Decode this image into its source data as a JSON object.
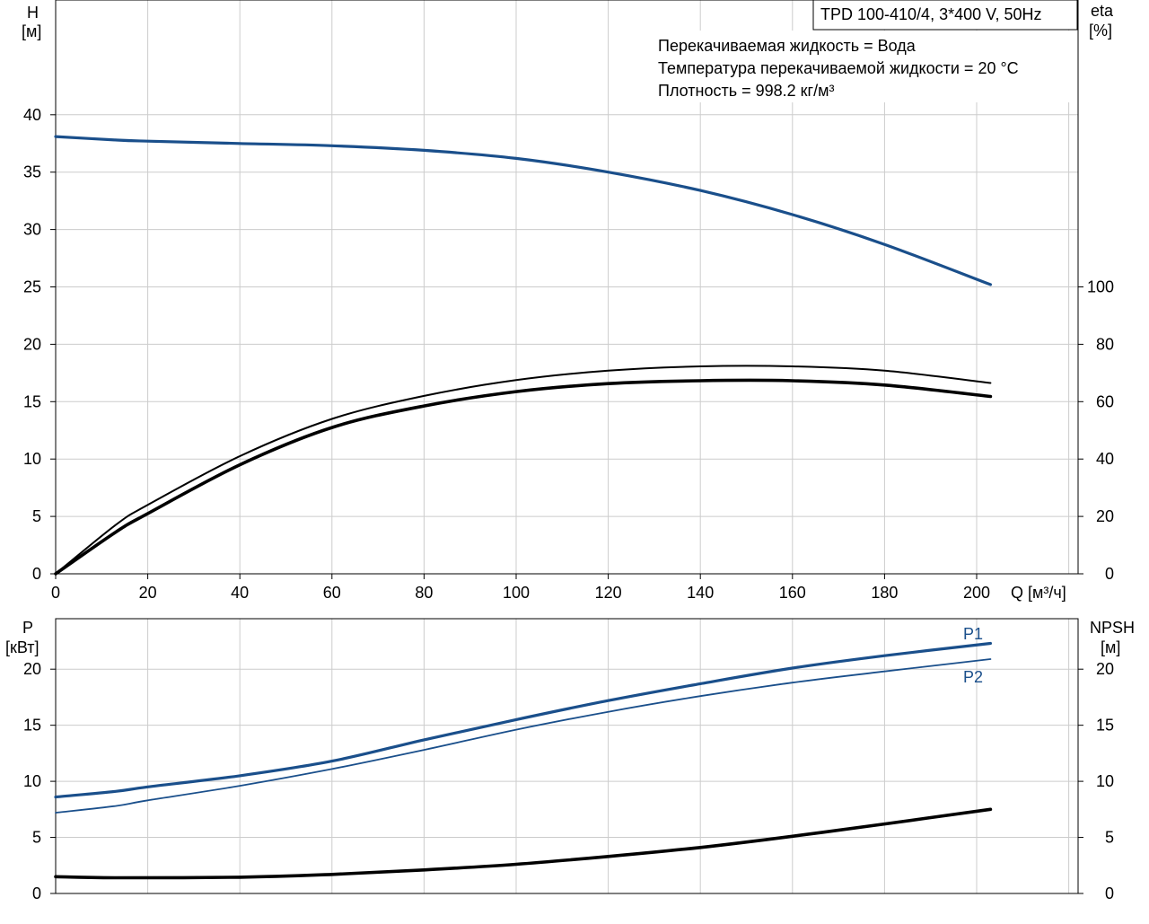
{
  "colors": {
    "blue": "#1a4f8b",
    "black": "#000000",
    "grid": "#cccccc",
    "frame": "#000000"
  },
  "chart_data": [
    {
      "id": "top",
      "type": "line",
      "title": "TPD 100-410/4, 3*400 V, 50Hz",
      "info_lines": [
        "Перекачиваемая жидкость = Вода",
        "Температура перекачиваемой жидкости = 20 °C",
        "Плотность = 998.2 кг/м³"
      ],
      "xlabel": "Q [м³/ч]",
      "x_ticks": [
        0,
        20,
        40,
        60,
        80,
        100,
        120,
        140,
        160,
        180,
        200
      ],
      "xlim": [
        0,
        220
      ],
      "left_axis": {
        "label_top": "H",
        "label_unit": "[м]",
        "ticks": [
          0,
          5,
          10,
          15,
          20,
          25,
          30,
          35,
          40
        ],
        "ylim": [
          0,
          50
        ]
      },
      "right_axis": {
        "label_top": "eta",
        "label_unit": "[%]",
        "ticks": [
          0,
          20,
          40,
          60,
          80,
          100
        ],
        "ylim": [
          0,
          200
        ]
      },
      "grid": true,
      "series": [
        {
          "axis": "left",
          "color": "blue",
          "width": 3.2,
          "x": [
            0,
            13,
            20,
            40,
            60,
            80,
            100,
            120,
            140,
            160,
            180,
            203
          ],
          "y": [
            38.1,
            37.8,
            37.7,
            37.5,
            37.3,
            36.9,
            36.2,
            35.0,
            33.4,
            31.3,
            28.7,
            25.2
          ]
        },
        {
          "axis": "right",
          "color": "black",
          "width": 2.0,
          "x": [
            0,
            13,
            20,
            40,
            60,
            80,
            100,
            120,
            140,
            160,
            180,
            203
          ],
          "y": [
            0,
            17,
            24,
            41,
            54,
            62,
            67.5,
            70.8,
            72.3,
            72.3,
            70.8,
            66.5
          ]
        },
        {
          "axis": "right",
          "color": "black",
          "width": 3.6,
          "x": [
            0,
            13,
            20,
            40,
            60,
            80,
            100,
            120,
            140,
            160,
            180,
            203
          ],
          "y": [
            0,
            14.5,
            21,
            38,
            51,
            58.5,
            63.5,
            66.3,
            67.3,
            67.3,
            65.8,
            61.8
          ]
        }
      ]
    },
    {
      "id": "bottom",
      "type": "line",
      "xlim": [
        0,
        220
      ],
      "x_ticks": [
        0,
        20,
        40,
        60,
        80,
        100,
        120,
        140,
        160,
        180,
        200
      ],
      "left_axis": {
        "label_top": "P",
        "label_unit": "[кВт]",
        "ticks": [
          0,
          5,
          10,
          15,
          20
        ],
        "ylim": [
          0,
          24.5
        ]
      },
      "right_axis": {
        "label_top": "NPSH",
        "label_unit": "[м]",
        "ticks": [
          0,
          5,
          10,
          15,
          20
        ],
        "ylim": [
          0,
          24.5
        ]
      },
      "grid": true,
      "series": [
        {
          "name": "P1",
          "axis": "left",
          "color": "blue",
          "width": 3.2,
          "x": [
            0,
            13,
            20,
            40,
            60,
            80,
            100,
            120,
            140,
            160,
            180,
            203
          ],
          "y": [
            8.6,
            9.1,
            9.5,
            10.5,
            11.8,
            13.7,
            15.5,
            17.2,
            18.7,
            20.1,
            21.2,
            22.3
          ]
        },
        {
          "name": "P2",
          "axis": "left",
          "color": "blue",
          "width": 1.8,
          "x": [
            0,
            13,
            20,
            40,
            60,
            80,
            100,
            120,
            140,
            160,
            180,
            203
          ],
          "y": [
            7.2,
            7.8,
            8.3,
            9.6,
            11.1,
            12.8,
            14.6,
            16.2,
            17.6,
            18.8,
            19.8,
            20.9
          ]
        },
        {
          "axis": "right",
          "color": "black",
          "width": 3.6,
          "x": [
            0,
            13,
            40,
            60,
            80,
            100,
            120,
            140,
            160,
            180,
            203
          ],
          "y": [
            1.5,
            1.4,
            1.45,
            1.7,
            2.1,
            2.6,
            3.3,
            4.1,
            5.1,
            6.2,
            7.5
          ]
        }
      ]
    }
  ]
}
